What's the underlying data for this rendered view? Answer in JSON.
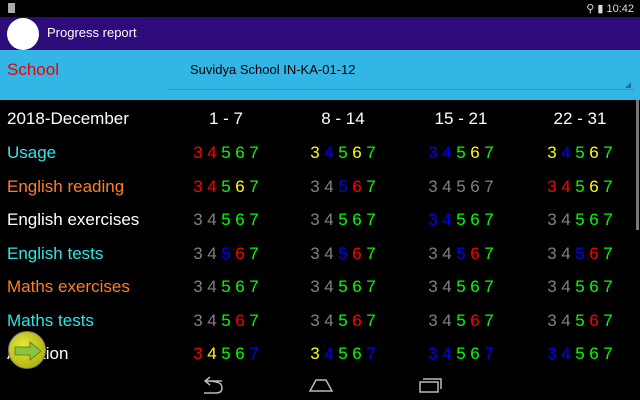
{
  "status_bar": {
    "time": "10:42"
  },
  "app_bar": {
    "title": "Progress report",
    "logo_icon": "school-logo-icon"
  },
  "school": {
    "label": "School",
    "value": "Suvidya School IN-KA-01-12"
  },
  "table": {
    "period": "2018-December",
    "columns": [
      "1 - 7",
      "8 - 14",
      "15 - 21",
      "22 - 31"
    ],
    "digits": [
      "3",
      "4",
      "5",
      "6",
      "7"
    ],
    "colors": {
      "r": "#ff0000",
      "g": "#00ff00",
      "y": "#ffff00",
      "b": "#0000ff",
      "x": "#808080"
    },
    "rows": [
      {
        "label": "Usage",
        "color": "#2ee6e6",
        "cells": [
          "rrggg",
          "ybgyg",
          "bbgyg",
          "ybgyg"
        ]
      },
      {
        "label": "English reading",
        "color": "#ff7f27",
        "cells": [
          "rrgyg",
          "xxbrg",
          "xxxxx",
          "rrgyg"
        ]
      },
      {
        "label": "English exercises",
        "color": "#ffffff",
        "cells": [
          "xxggg",
          "xxggg",
          "bbggg",
          "xxggg"
        ]
      },
      {
        "label": "English tests",
        "color": "#2ee6e6",
        "cells": [
          "xxbrg",
          "xxbrg",
          "xxbrg",
          "xxbrg"
        ]
      },
      {
        "label": "Maths exercises",
        "color": "#ff7f27",
        "cells": [
          "xxggg",
          "xxggg",
          "xxggg",
          "xxggg"
        ]
      },
      {
        "label": "Maths tests",
        "color": "#2ee6e6",
        "cells": [
          "xxgrg",
          "xxgrg",
          "xxgrg",
          "xxgrg"
        ]
      },
      {
        "label": "Addition",
        "color": "#ffffff",
        "cells": [
          "ryggb",
          "ybggb",
          "bbggb",
          "bbggg"
        ]
      }
    ]
  },
  "fab": {
    "icon": "arrow-right-icon"
  },
  "nav": {
    "back": "back-icon",
    "home": "home-icon",
    "recents": "recents-icon"
  }
}
